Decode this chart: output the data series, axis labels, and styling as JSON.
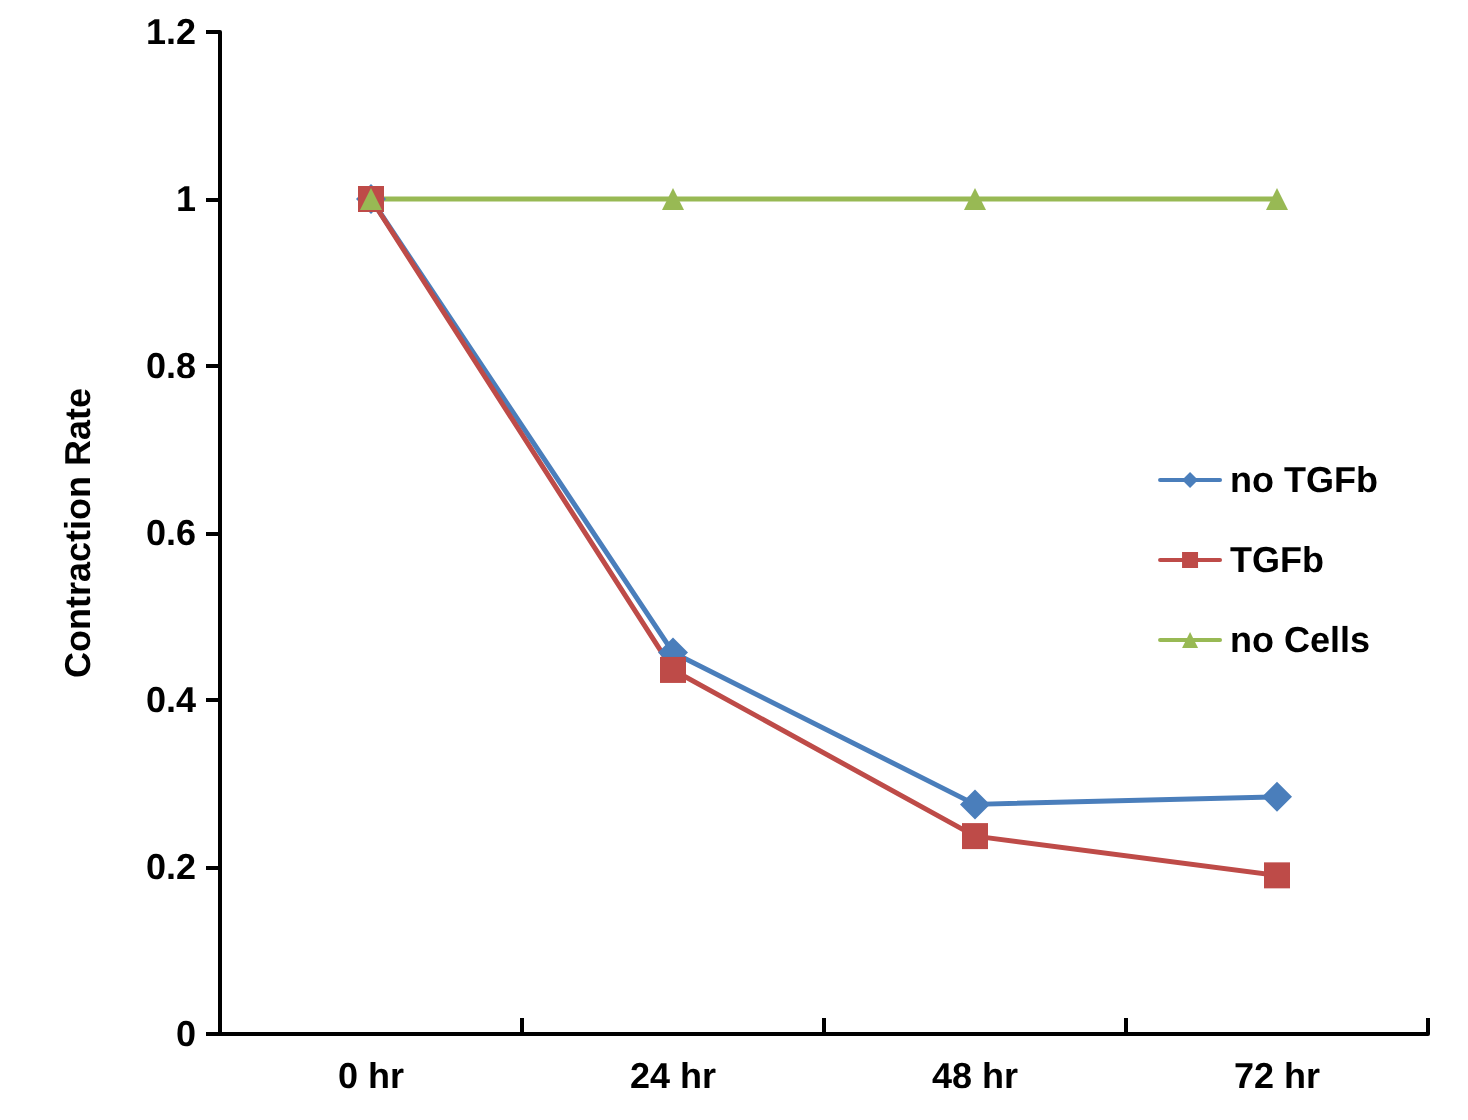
{
  "chart_data": {
    "type": "line",
    "ylabel": "Contraction Rate",
    "categories": [
      "0 hr",
      "24 hr",
      "48 hr",
      "72 hr"
    ],
    "series": [
      {
        "name": "no TGFb",
        "color": "#4a7ebb",
        "marker": "diamond",
        "values": [
          1,
          0.457,
          0.275,
          0.284
        ]
      },
      {
        "name": "TGFb",
        "color": "#be4b48",
        "marker": "square",
        "values": [
          1,
          0.436,
          0.237,
          0.19
        ]
      },
      {
        "name": "no Cells",
        "color": "#98b954",
        "marker": "triangle",
        "values": [
          1,
          1,
          1,
          1
        ]
      }
    ],
    "ylim": [
      0,
      1.2
    ],
    "yticks": [
      0,
      0.2,
      0.4,
      0.6,
      0.8,
      1,
      1.2
    ],
    "grid": false,
    "legend": "right",
    "line_style": "solid"
  }
}
